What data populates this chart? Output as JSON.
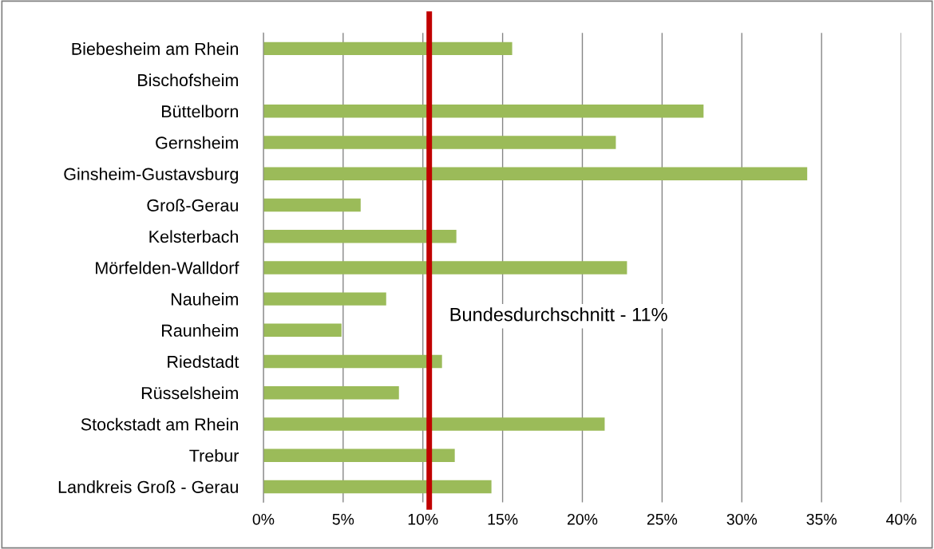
{
  "chart_data": {
    "type": "bar",
    "orientation": "horizontal",
    "categories": [
      "Biebesheim am Rhein",
      "Bischofsheim",
      "Büttelborn",
      "Gernsheim",
      "Ginsheim-Gustavsburg",
      "Groß-Gerau",
      "Kelsterbach",
      "Mörfelden-Walldorf",
      "Nauheim",
      "Raunheim",
      "Riedstadt",
      "Rüsselsheim",
      "Stockstadt am Rhein",
      "Trebur",
      "Landkreis Groß - Gerau"
    ],
    "values": [
      15.6,
      null,
      27.6,
      22.1,
      34.1,
      6.1,
      12.1,
      22.8,
      7.7,
      4.9,
      11.2,
      8.5,
      21.4,
      12.0,
      14.3
    ],
    "color": "#9bbb59",
    "xlim": [
      0,
      40
    ],
    "xticks": [
      {
        "value": 0,
        "label": "0%"
      },
      {
        "value": 5,
        "label": "5%"
      },
      {
        "value": 10,
        "label": "10%"
      },
      {
        "value": 15,
        "label": "15%"
      },
      {
        "value": 20,
        "label": "20%"
      },
      {
        "value": 25,
        "label": "25%"
      },
      {
        "value": 30,
        "label": "30%"
      },
      {
        "value": 35,
        "label": "35%"
      },
      {
        "value": 40,
        "label": "40%"
      }
    ],
    "grid": "x",
    "legend": false,
    "ref_lines": [
      {
        "axis": "x",
        "value": 10.4,
        "label": "Bundesdurchschnitt - 11%",
        "color": "#c00000",
        "line_style": "solid"
      }
    ]
  }
}
